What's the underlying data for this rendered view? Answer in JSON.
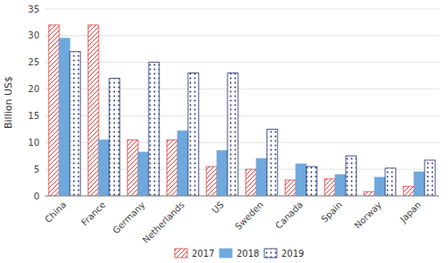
{
  "chart_data": {
    "type": "bar",
    "categories": [
      "China",
      "France",
      "Germany",
      "Netherlands",
      "US",
      "Sweden",
      "Canada",
      "Spain",
      "Norway",
      "Japan"
    ],
    "series": [
      {
        "name": "2017",
        "color": "#d94040",
        "values": [
          32,
          32,
          10.5,
          10.5,
          5.5,
          5.0,
          3.0,
          3.2,
          0.8,
          1.8
        ]
      },
      {
        "name": "2018",
        "color": "#6fa8dc",
        "values": [
          29.5,
          10.5,
          8.2,
          12.2,
          8.5,
          7.0,
          6.0,
          4.0,
          3.5,
          4.5
        ]
      },
      {
        "name": "2019",
        "color": "#1f2d6e",
        "values": [
          27,
          22,
          25,
          23,
          23,
          12.5,
          5.5,
          7.5,
          5.2,
          6.7
        ]
      }
    ],
    "ylabel": "Billion US$",
    "ylim": [
      0,
      35
    ],
    "yticks": [
      0,
      5,
      10,
      15,
      20,
      25,
      30,
      35
    ],
    "grid": true,
    "legend": "bottom"
  }
}
